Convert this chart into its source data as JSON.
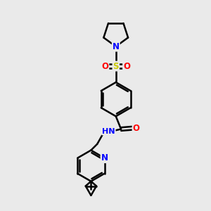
{
  "background_color": "#eaeaea",
  "atom_colors": {
    "N": "#0000ff",
    "O": "#ff0000",
    "S": "#cccc00",
    "C": "#000000",
    "H": "#555555"
  },
  "bond_color": "#000000",
  "bond_width": 1.8,
  "fig_width": 3.0,
  "fig_height": 3.0,
  "dpi": 100
}
